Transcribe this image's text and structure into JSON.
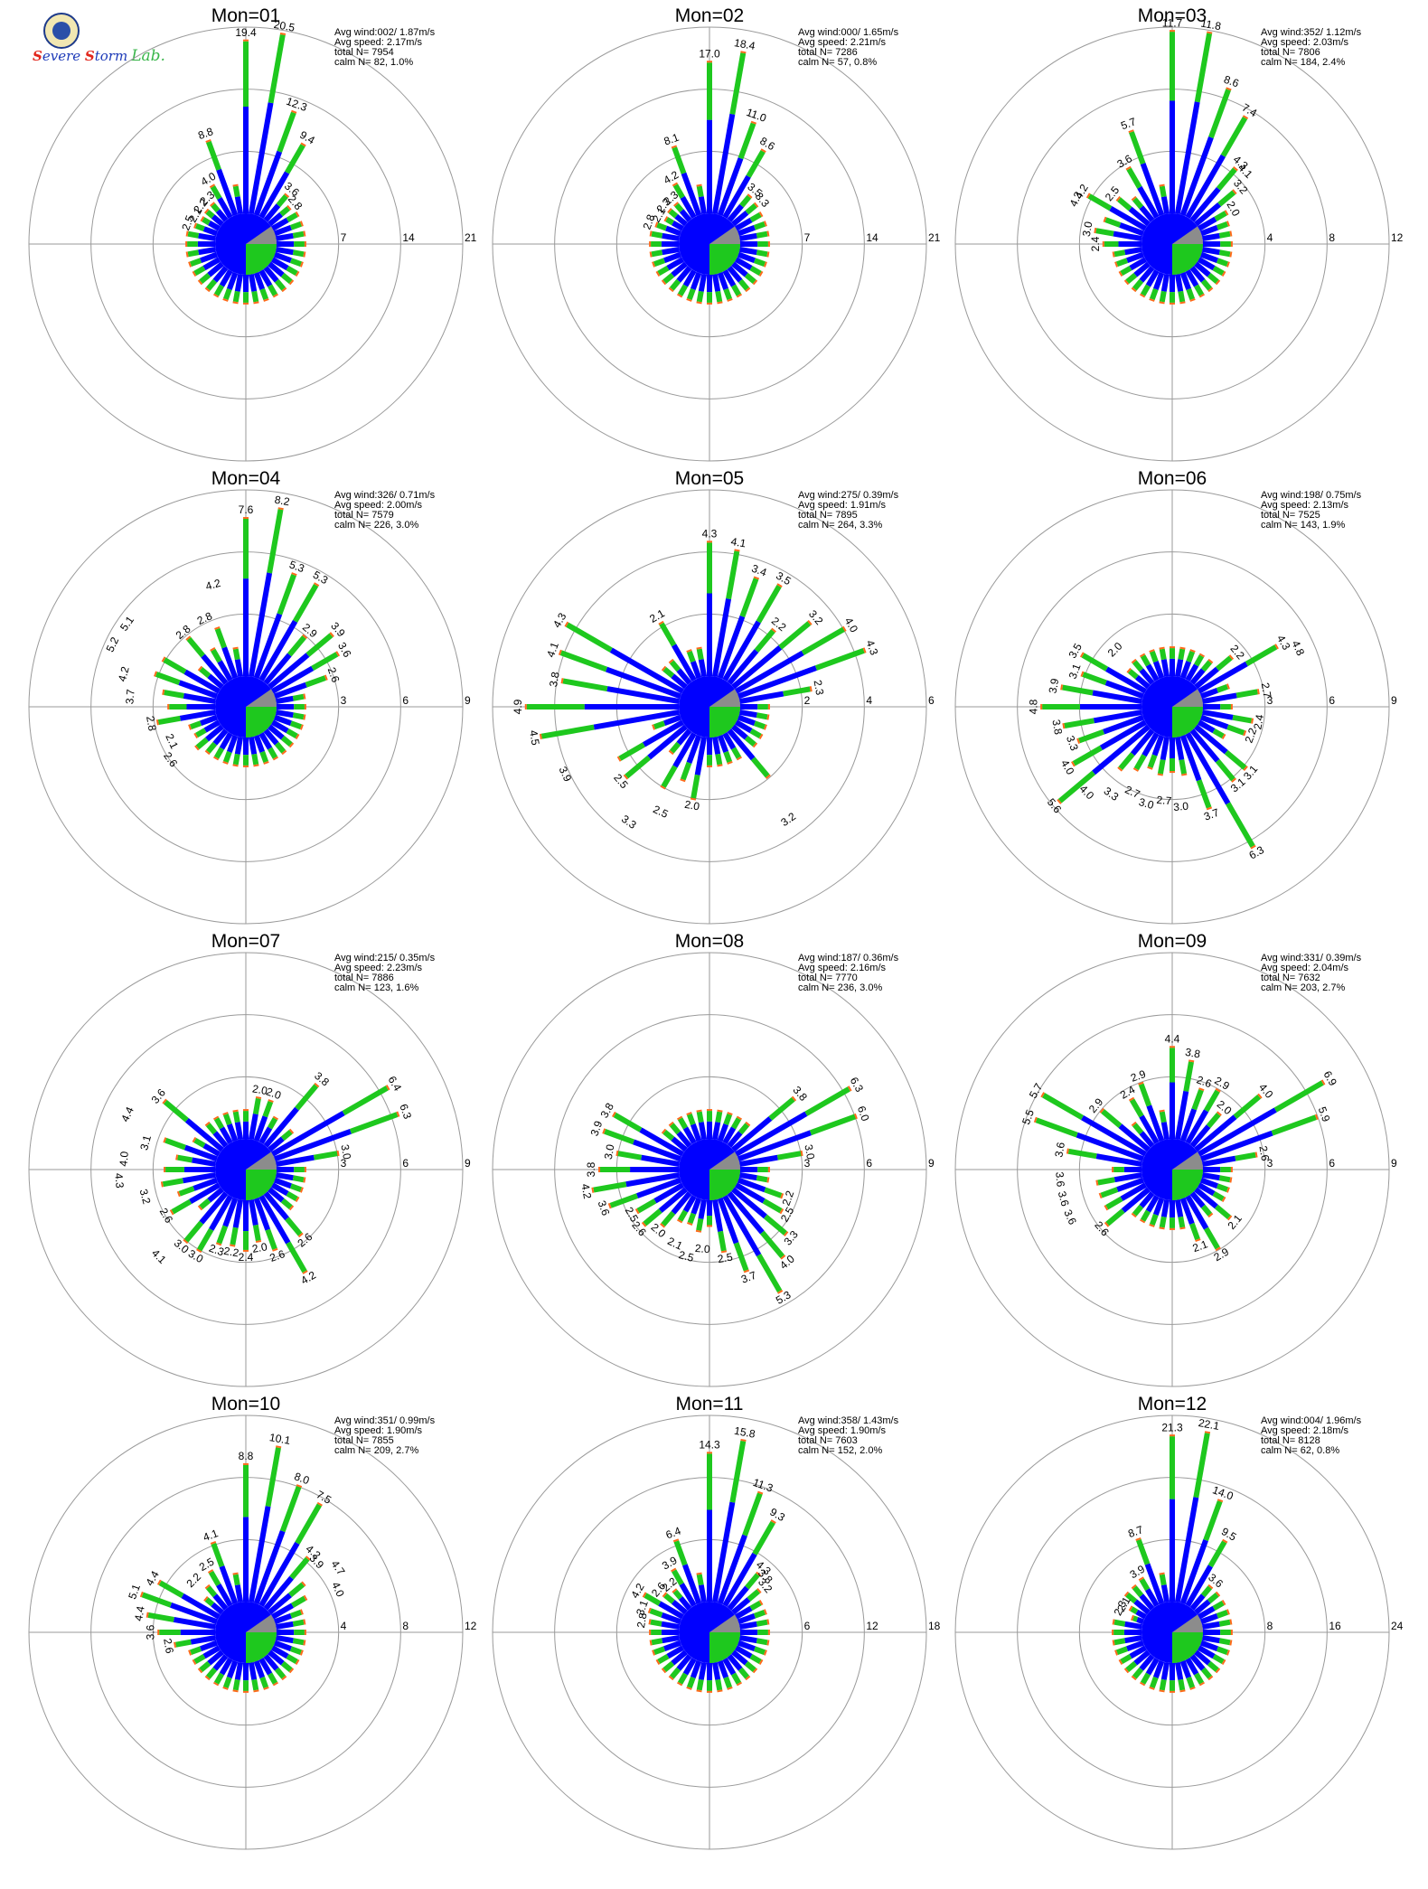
{
  "logo": {
    "text": "Severe Storm Lab."
  },
  "colors": {
    "blue": "#0000ff",
    "green": "#1ec81e",
    "orange": "#ff6a1a",
    "gray": "#8c8c8c",
    "ring": "#9a9a9a"
  },
  "chart_data": [
    {
      "type": "wind-rose",
      "title": "Mon=01",
      "rings": [
        7,
        14,
        21
      ],
      "info": [
        "Avg wind:002/ 1.87m/s",
        "Avg speed: 2.17m/s",
        "total N=        7954",
        "calm N=    82,   1.0%"
      ],
      "labels": [
        {
          "dir": 0,
          "value": "19.4"
        },
        {
          "dir": 10,
          "value": "20.5"
        },
        {
          "dir": 20,
          "value": "12.3"
        },
        {
          "dir": 30,
          "value": "9.4"
        },
        {
          "dir": 40,
          "value": "3.6"
        },
        {
          "dir": 50,
          "value": "2.8"
        },
        {
          "dir": 340,
          "value": "8.8"
        },
        {
          "dir": 330,
          "value": "4.0"
        },
        {
          "dir": 320,
          "value": "2.3"
        },
        {
          "dir": 310,
          "value": "2.2"
        },
        {
          "dir": 300,
          "value": "2.1"
        },
        {
          "dir": 290,
          "value": "2.5"
        }
      ]
    },
    {
      "type": "wind-rose",
      "title": "Mon=02",
      "rings": [
        7,
        14,
        21
      ],
      "info": [
        "Avg wind:000/ 1.65m/s",
        "Avg speed: 2.21m/s",
        "total N=        7286",
        "calm N=    57,   0.8%"
      ],
      "labels": [
        {
          "dir": 0,
          "value": "17.0"
        },
        {
          "dir": 10,
          "value": "18.4"
        },
        {
          "dir": 20,
          "value": "11.0"
        },
        {
          "dir": 30,
          "value": "8.6"
        },
        {
          "dir": 40,
          "value": "3.5"
        },
        {
          "dir": 50,
          "value": "3.3"
        },
        {
          "dir": 340,
          "value": "8.1"
        },
        {
          "dir": 330,
          "value": "4.2"
        },
        {
          "dir": 320,
          "value": "2.3"
        },
        {
          "dir": 310,
          "value": "2.3"
        },
        {
          "dir": 300,
          "value": "2.1"
        },
        {
          "dir": 290,
          "value": "2.8"
        }
      ]
    },
    {
      "type": "wind-rose",
      "title": "Mon=03",
      "rings": [
        4,
        8,
        12
      ],
      "info": [
        "Avg wind:352/ 1.12m/s",
        "Avg speed: 2.03m/s",
        "total N=        7806",
        "calm N=   184,   2.4%"
      ],
      "labels": [
        {
          "dir": 0,
          "value": "11.7"
        },
        {
          "dir": 10,
          "value": "11.8"
        },
        {
          "dir": 20,
          "value": "8.6"
        },
        {
          "dir": 30,
          "value": "7.4"
        },
        {
          "dir": 40,
          "value": "4.3"
        },
        {
          "dir": 45,
          "value": "4.1"
        },
        {
          "dir": 50,
          "value": "3.2"
        },
        {
          "dir": 60,
          "value": "2.0"
        },
        {
          "dir": 340,
          "value": "5.7"
        },
        {
          "dir": 330,
          "value": "3.6"
        },
        {
          "dir": 310,
          "value": "2.5"
        },
        {
          "dir": 300,
          "value": "4.2"
        },
        {
          "dir": 295,
          "value": "4.3"
        },
        {
          "dir": 280,
          "value": "3.0"
        },
        {
          "dir": 270,
          "value": "2.4"
        }
      ]
    },
    {
      "type": "wind-rose",
      "title": "Mon=04",
      "rings": [
        3,
        6,
        9
      ],
      "info": [
        "Avg wind:326/ 0.71m/s",
        "Avg speed: 2.00m/s",
        "total N=        7579",
        "calm N=   226,   3.0%"
      ],
      "labels": [
        {
          "dir": 0,
          "value": "7.6"
        },
        {
          "dir": 10,
          "value": "8.2"
        },
        {
          "dir": 20,
          "value": "5.3"
        },
        {
          "dir": 30,
          "value": "5.3"
        },
        {
          "dir": 40,
          "value": "2.9"
        },
        {
          "dir": 50,
          "value": "3.9"
        },
        {
          "dir": 60,
          "value": "3.6"
        },
        {
          "dir": 70,
          "value": "2.6"
        },
        {
          "dir": 345,
          "value": "4.2"
        },
        {
          "dir": 335,
          "value": "2.8"
        },
        {
          "dir": 320,
          "value": "2.8"
        },
        {
          "dir": 305,
          "value": "5.1"
        },
        {
          "dir": 295,
          "value": "5.2"
        },
        {
          "dir": 285,
          "value": "4.2"
        },
        {
          "dir": 275,
          "value": "3.7"
        },
        {
          "dir": 260,
          "value": "2.8"
        },
        {
          "dir": 245,
          "value": "2.1"
        },
        {
          "dir": 235,
          "value": "2.6"
        }
      ]
    },
    {
      "type": "wind-rose",
      "title": "Mon=05",
      "rings": [
        2,
        4,
        6
      ],
      "info": [
        "Avg wind:275/ 0.39m/s",
        "Avg speed: 1.91m/s",
        "total N=        7895",
        "calm N=   264,   3.3%"
      ],
      "labels": [
        {
          "dir": 0,
          "value": "4.3"
        },
        {
          "dir": 10,
          "value": "4.1"
        },
        {
          "dir": 20,
          "value": "3.4"
        },
        {
          "dir": 30,
          "value": "3.5"
        },
        {
          "dir": 40,
          "value": "2.2"
        },
        {
          "dir": 50,
          "value": "3.2"
        },
        {
          "dir": 60,
          "value": "4.0"
        },
        {
          "dir": 70,
          "value": "4.3"
        },
        {
          "dir": 80,
          "value": "2.3"
        },
        {
          "dir": 330,
          "value": "2.1"
        },
        {
          "dir": 300,
          "value": "4.3"
        },
        {
          "dir": 290,
          "value": "4.1"
        },
        {
          "dir": 280,
          "value": "3.8"
        },
        {
          "dir": 270,
          "value": "4.9"
        },
        {
          "dir": 260,
          "value": "4.5"
        },
        {
          "dir": 245,
          "value": "3.9"
        },
        {
          "dir": 230,
          "value": "2.5"
        },
        {
          "dir": 215,
          "value": "3.3"
        },
        {
          "dir": 205,
          "value": "2.5"
        },
        {
          "dir": 190,
          "value": "2.0"
        },
        {
          "dir": 145,
          "value": "3.2"
        }
      ]
    },
    {
      "type": "wind-rose",
      "title": "Mon=06",
      "rings": [
        3,
        6,
        9
      ],
      "info": [
        "Avg wind:198/ 0.75m/s",
        "Avg speed: 2.13m/s",
        "total N=        7525",
        "calm N=   143,   1.9%"
      ],
      "labels": [
        {
          "dir": 50,
          "value": "2.2"
        },
        {
          "dir": 60,
          "value": "4.3"
        },
        {
          "dir": 65,
          "value": "4.8"
        },
        {
          "dir": 80,
          "value": "2.7"
        },
        {
          "dir": 100,
          "value": "2.4"
        },
        {
          "dir": 110,
          "value": "2.2"
        },
        {
          "dir": 130,
          "value": "3.1"
        },
        {
          "dir": 140,
          "value": "3.1"
        },
        {
          "dir": 150,
          "value": "6.3"
        },
        {
          "dir": 160,
          "value": "3.7"
        },
        {
          "dir": 175,
          "value": "3.0"
        },
        {
          "dir": 185,
          "value": "2.7"
        },
        {
          "dir": 195,
          "value": "3.0"
        },
        {
          "dir": 205,
          "value": "2.7"
        },
        {
          "dir": 215,
          "value": "3.3"
        },
        {
          "dir": 225,
          "value": "4.0"
        },
        {
          "dir": 230,
          "value": "5.6"
        },
        {
          "dir": 240,
          "value": "4.0"
        },
        {
          "dir": 250,
          "value": "3.3"
        },
        {
          "dir": 260,
          "value": "3.8"
        },
        {
          "dir": 270,
          "value": "4.8"
        },
        {
          "dir": 280,
          "value": "3.9"
        },
        {
          "dir": 290,
          "value": "3.1"
        },
        {
          "dir": 300,
          "value": "3.5"
        },
        {
          "dir": 315,
          "value": "2.0"
        }
      ]
    },
    {
      "type": "wind-rose",
      "title": "Mon=07",
      "rings": [
        3,
        6,
        9
      ],
      "info": [
        "Avg wind:215/ 0.35m/s",
        "Avg speed: 2.23m/s",
        "total N=        7886",
        "calm N=   123,   1.6%"
      ],
      "labels": [
        {
          "dir": 10,
          "value": "2.0"
        },
        {
          "dir": 20,
          "value": "2.0"
        },
        {
          "dir": 40,
          "value": "3.8"
        },
        {
          "dir": 60,
          "value": "6.4"
        },
        {
          "dir": 70,
          "value": "6.3"
        },
        {
          "dir": 80,
          "value": "3.0"
        },
        {
          "dir": 140,
          "value": "2.6"
        },
        {
          "dir": 150,
          "value": "4.2"
        },
        {
          "dir": 160,
          "value": "2.6"
        },
        {
          "dir": 170,
          "value": "2.0"
        },
        {
          "dir": 180,
          "value": "2.4"
        },
        {
          "dir": 190,
          "value": "2.2"
        },
        {
          "dir": 200,
          "value": "2.3"
        },
        {
          "dir": 210,
          "value": "3.0"
        },
        {
          "dir": 220,
          "value": "3.0"
        },
        {
          "dir": 225,
          "value": "4.1"
        },
        {
          "dir": 240,
          "value": "2.6"
        },
        {
          "dir": 255,
          "value": "3.2"
        },
        {
          "dir": 265,
          "value": "4.3"
        },
        {
          "dir": 275,
          "value": "4.0"
        },
        {
          "dir": 285,
          "value": "3.1"
        },
        {
          "dir": 295,
          "value": "4.4"
        },
        {
          "dir": 310,
          "value": "3.6"
        }
      ]
    },
    {
      "type": "wind-rose",
      "title": "Mon=08",
      "rings": [
        3,
        6,
        9
      ],
      "info": [
        "Avg wind:187/ 0.36m/s",
        "Avg speed: 2.16m/s",
        "total N=        7770",
        "calm N=   236,   3.0%"
      ],
      "labels": [
        {
          "dir": 50,
          "value": "3.8"
        },
        {
          "dir": 60,
          "value": "6.3"
        },
        {
          "dir": 70,
          "value": "6.0"
        },
        {
          "dir": 80,
          "value": "3.0"
        },
        {
          "dir": 110,
          "value": "2.2"
        },
        {
          "dir": 120,
          "value": "2.5"
        },
        {
          "dir": 130,
          "value": "3.3"
        },
        {
          "dir": 140,
          "value": "4.0"
        },
        {
          "dir": 150,
          "value": "5.3"
        },
        {
          "dir": 160,
          "value": "3.7"
        },
        {
          "dir": 170,
          "value": "2.5"
        },
        {
          "dir": 185,
          "value": "2.0"
        },
        {
          "dir": 195,
          "value": "2.5"
        },
        {
          "dir": 205,
          "value": "2.1"
        },
        {
          "dir": 220,
          "value": "2.0"
        },
        {
          "dir": 230,
          "value": "2.6"
        },
        {
          "dir": 240,
          "value": "2.5"
        },
        {
          "dir": 250,
          "value": "3.6"
        },
        {
          "dir": 260,
          "value": "4.2"
        },
        {
          "dir": 270,
          "value": "3.8"
        },
        {
          "dir": 280,
          "value": "3.0"
        },
        {
          "dir": 290,
          "value": "3.9"
        },
        {
          "dir": 300,
          "value": "3.8"
        }
      ]
    },
    {
      "type": "wind-rose",
      "title": "Mon=09",
      "rings": [
        3,
        6,
        9
      ],
      "info": [
        "Avg wind:331/ 0.39m/s",
        "Avg speed: 2.04m/s",
        "total N=        7632",
        "calm N=   203,   2.7%"
      ],
      "labels": [
        {
          "dir": 0,
          "value": "4.4"
        },
        {
          "dir": 10,
          "value": "3.8"
        },
        {
          "dir": 20,
          "value": "2.6"
        },
        {
          "dir": 30,
          "value": "2.9"
        },
        {
          "dir": 40,
          "value": "2.0"
        },
        {
          "dir": 50,
          "value": "4.0"
        },
        {
          "dir": 60,
          "value": "6.9"
        },
        {
          "dir": 70,
          "value": "5.9"
        },
        {
          "dir": 80,
          "value": "2.6"
        },
        {
          "dir": 130,
          "value": "2.1"
        },
        {
          "dir": 150,
          "value": "2.9"
        },
        {
          "dir": 160,
          "value": "2.1"
        },
        {
          "dir": 230,
          "value": "2.6"
        },
        {
          "dir": 245,
          "value": "3.6"
        },
        {
          "dir": 255,
          "value": "3.6"
        },
        {
          "dir": 265,
          "value": "3.6"
        },
        {
          "dir": 280,
          "value": "3.6"
        },
        {
          "dir": 290,
          "value": "5.5"
        },
        {
          "dir": 300,
          "value": "5.7"
        },
        {
          "dir": 310,
          "value": "2.9"
        },
        {
          "dir": 330,
          "value": "2.4"
        },
        {
          "dir": 340,
          "value": "2.9"
        }
      ]
    },
    {
      "type": "wind-rose",
      "title": "Mon=10",
      "rings": [
        4,
        8,
        12
      ],
      "info": [
        "Avg wind:351/ 0.99m/s",
        "Avg speed: 1.90m/s",
        "total N=        7855",
        "calm N=   209,   2.7%"
      ],
      "labels": [
        {
          "dir": 0,
          "value": "8.8"
        },
        {
          "dir": 10,
          "value": "10.1"
        },
        {
          "dir": 20,
          "value": "8.0"
        },
        {
          "dir": 30,
          "value": "7.5"
        },
        {
          "dir": 40,
          "value": "4.2"
        },
        {
          "dir": 45,
          "value": "3.9"
        },
        {
          "dir": 55,
          "value": "4.7"
        },
        {
          "dir": 65,
          "value": "4.0"
        },
        {
          "dir": 340,
          "value": "4.1"
        },
        {
          "dir": 330,
          "value": "2.5"
        },
        {
          "dir": 315,
          "value": "2.2"
        },
        {
          "dir": 300,
          "value": "4.4"
        },
        {
          "dir": 290,
          "value": "5.1"
        },
        {
          "dir": 280,
          "value": "4.4"
        },
        {
          "dir": 270,
          "value": "3.6"
        },
        {
          "dir": 260,
          "value": "2.6"
        }
      ]
    },
    {
      "type": "wind-rose",
      "title": "Mon=11",
      "rings": [
        6,
        12,
        18
      ],
      "info": [
        "Avg wind:358/ 1.43m/s",
        "Avg speed: 1.90m/s",
        "total N=        7603",
        "calm N=   152,   2.0%"
      ],
      "labels": [
        {
          "dir": 0,
          "value": "14.3"
        },
        {
          "dir": 10,
          "value": "15.8"
        },
        {
          "dir": 20,
          "value": "11.3"
        },
        {
          "dir": 30,
          "value": "9.3"
        },
        {
          "dir": 40,
          "value": "4.3"
        },
        {
          "dir": 45,
          "value": "3.8"
        },
        {
          "dir": 50,
          "value": "3.2"
        },
        {
          "dir": 340,
          "value": "6.4"
        },
        {
          "dir": 330,
          "value": "3.9"
        },
        {
          "dir": 320,
          "value": "2.2"
        },
        {
          "dir": 310,
          "value": "2.6"
        },
        {
          "dir": 300,
          "value": "4.2"
        },
        {
          "dir": 290,
          "value": "3.1"
        },
        {
          "dir": 280,
          "value": "2.8"
        }
      ]
    },
    {
      "type": "wind-rose",
      "title": "Mon=12",
      "rings": [
        8,
        16,
        24
      ],
      "info": [
        "Avg wind:004/ 1.96m/s",
        "Avg speed: 2.18m/s",
        "total N=        8128",
        "calm N=    62,   0.8%"
      ],
      "labels": [
        {
          "dir": 0,
          "value": "21.3"
        },
        {
          "dir": 10,
          "value": "22.1"
        },
        {
          "dir": 20,
          "value": "14.0"
        },
        {
          "dir": 30,
          "value": "9.5"
        },
        {
          "dir": 40,
          "value": "3.6"
        },
        {
          "dir": 340,
          "value": "8.7"
        },
        {
          "dir": 330,
          "value": "3.9"
        },
        {
          "dir": 300,
          "value": "2.1"
        },
        {
          "dir": 295,
          "value": "2.3"
        }
      ]
    }
  ]
}
